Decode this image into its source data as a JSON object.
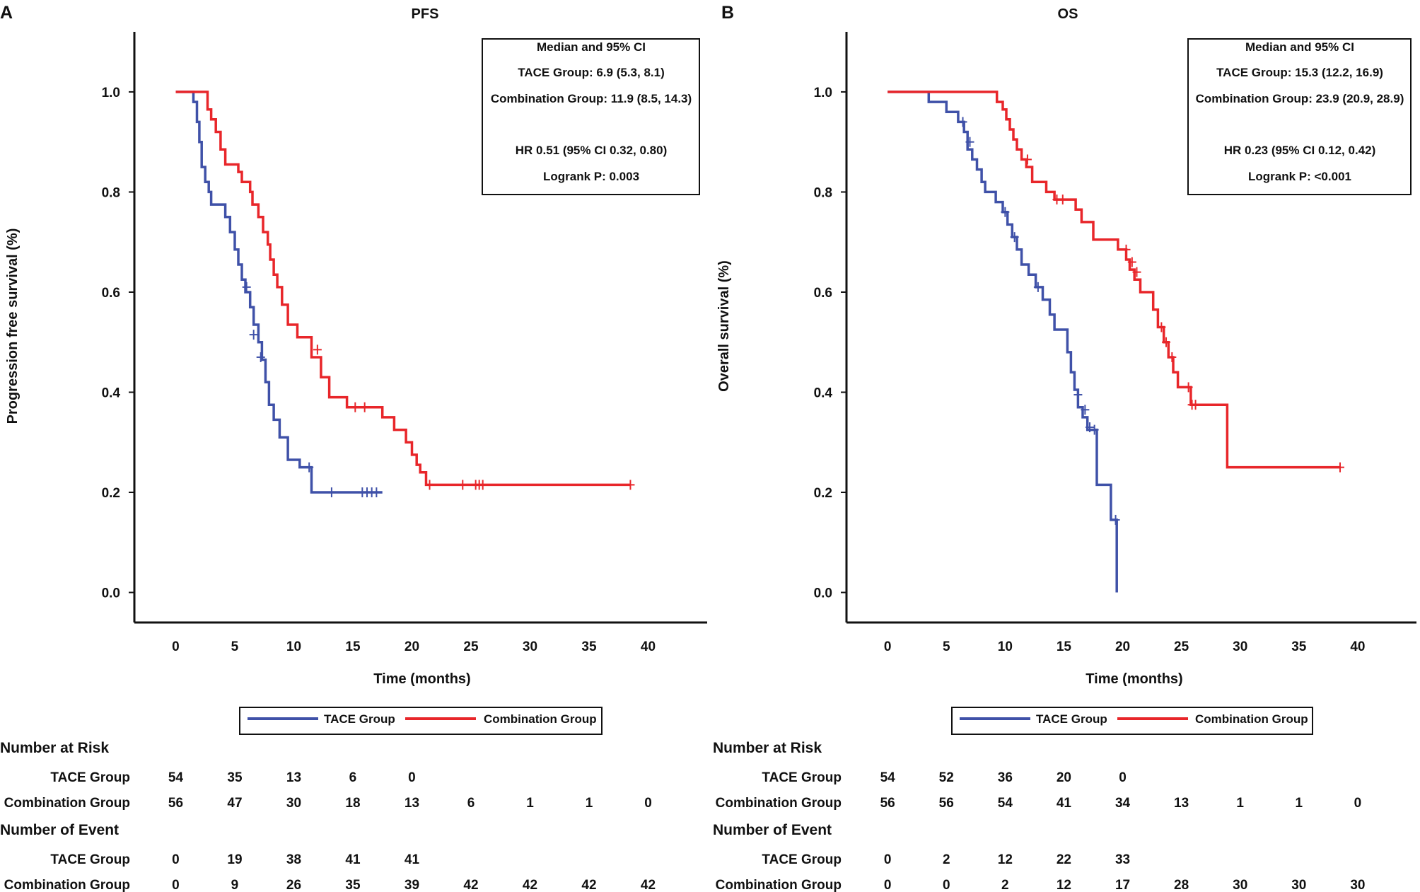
{
  "colors": {
    "tace": "#3f51a8",
    "combination": "#e8262a",
    "axis": "#111111"
  },
  "chart_data": [
    {
      "type": "line",
      "panel_label": "A",
      "title": "PFS",
      "xlabel": "Time (months)",
      "ylabel": "Progression free survival (%)",
      "xlim": [
        -3.5,
        45
      ],
      "ylim": [
        -0.06,
        1.12
      ],
      "xticks": [
        0,
        5,
        10,
        15,
        20,
        25,
        30,
        35,
        40
      ],
      "xtick_labels": [
        "0",
        "5",
        "10",
        "15",
        "20",
        "25",
        "30",
        "35",
        "40"
      ],
      "yticks": [
        0.0,
        0.2,
        0.4,
        0.6,
        0.8,
        1.0
      ],
      "ytick_labels": [
        "0.0",
        "0.2",
        "0.4",
        "0.6",
        "0.8",
        "1.0"
      ],
      "info_box": [
        "Median and 95% CI",
        "TACE Group: 6.9 (5.3, 8.1)",
        "Combination Group: 11.9 (8.5, 14.3)",
        "",
        "HR 0.51 (95% CI 0.32, 0.80)",
        "Logrank P: 0.003"
      ],
      "series": [
        {
          "name": "TACE Group",
          "x": [
            0,
            1.5,
            1.5,
            1.8,
            1.8,
            2.0,
            2.0,
            2.2,
            2.2,
            2.5,
            2.5,
            2.8,
            2.8,
            3.0,
            3.0,
            4.2,
            4.2,
            4.6,
            4.6,
            5.0,
            5.0,
            5.3,
            5.3,
            5.6,
            5.6,
            5.9,
            5.9,
            6.3,
            6.3,
            6.6,
            6.6,
            7.0,
            7.0,
            7.3,
            7.3,
            7.6,
            7.6,
            7.9,
            7.9,
            8.3,
            8.3,
            8.8,
            8.8,
            9.5,
            9.5,
            10.5,
            10.5,
            11.5,
            11.5,
            17.5
          ],
          "y": [
            1.0,
            1.0,
            0.98,
            0.98,
            0.94,
            0.94,
            0.9,
            0.9,
            0.85,
            0.85,
            0.82,
            0.82,
            0.8,
            0.8,
            0.775,
            0.775,
            0.75,
            0.75,
            0.72,
            0.72,
            0.685,
            0.685,
            0.655,
            0.655,
            0.625,
            0.625,
            0.6,
            0.6,
            0.57,
            0.57,
            0.535,
            0.535,
            0.5,
            0.5,
            0.465,
            0.465,
            0.42,
            0.42,
            0.375,
            0.375,
            0.345,
            0.345,
            0.31,
            0.31,
            0.265,
            0.265,
            0.25,
            0.25,
            0.2,
            0.2
          ],
          "censor_x": [
            6.0,
            6.6,
            7.2,
            11.3,
            13.2,
            15.8,
            16.2,
            16.6,
            17.0
          ],
          "censor_y": [
            0.61,
            0.515,
            0.47,
            0.25,
            0.2,
            0.2,
            0.2,
            0.2,
            0.2
          ]
        },
        {
          "name": "Combination Group",
          "x": [
            0,
            2.7,
            2.7,
            3.0,
            3.0,
            3.4,
            3.4,
            3.8,
            3.8,
            4.2,
            4.2,
            5.3,
            5.3,
            5.6,
            5.6,
            6.3,
            6.3,
            6.5,
            6.5,
            7.0,
            7.0,
            7.4,
            7.4,
            7.8,
            7.8,
            8.0,
            8.0,
            8.3,
            8.3,
            8.6,
            8.6,
            9.0,
            9.0,
            9.5,
            9.5,
            10.3,
            10.3,
            11.5,
            11.5,
            12.3,
            12.3,
            13.0,
            13.0,
            14.0,
            14.0,
            14.5,
            14.5,
            16.0,
            16.0,
            17.5,
            17.5,
            18.5,
            18.5,
            19.5,
            19.5,
            20.0,
            20.0,
            20.4,
            20.4,
            20.7,
            20.7,
            21.2,
            21.2,
            38.5
          ],
          "y": [
            1.0,
            1.0,
            0.965,
            0.965,
            0.945,
            0.945,
            0.92,
            0.92,
            0.885,
            0.885,
            0.855,
            0.855,
            0.84,
            0.84,
            0.82,
            0.82,
            0.8,
            0.8,
            0.775,
            0.775,
            0.75,
            0.75,
            0.72,
            0.72,
            0.695,
            0.695,
            0.665,
            0.665,
            0.635,
            0.635,
            0.61,
            0.61,
            0.575,
            0.575,
            0.535,
            0.535,
            0.51,
            0.51,
            0.47,
            0.47,
            0.43,
            0.43,
            0.39,
            0.39,
            0.39,
            0.39,
            0.37,
            0.37,
            0.37,
            0.37,
            0.35,
            0.35,
            0.325,
            0.325,
            0.3,
            0.3,
            0.275,
            0.275,
            0.255,
            0.255,
            0.24,
            0.24,
            0.215,
            0.215
          ],
          "censor_x": [
            12.0,
            15.2,
            16.0,
            21.5,
            24.3,
            25.4,
            25.7,
            26.0,
            38.5
          ],
          "censor_y": [
            0.485,
            0.37,
            0.37,
            0.215,
            0.215,
            0.215,
            0.215,
            0.215,
            0.215
          ]
        }
      ]
    },
    {
      "type": "line",
      "panel_label": "B",
      "title": "OS",
      "xlabel": "Time (months)",
      "ylabel": "Overall survival (%)",
      "xlim": [
        -3.5,
        45
      ],
      "ylim": [
        -0.06,
        1.12
      ],
      "xticks": [
        0,
        5,
        10,
        15,
        20,
        25,
        30,
        35,
        40
      ],
      "xtick_labels": [
        "0",
        "5",
        "10",
        "15",
        "20",
        "25",
        "30",
        "35",
        "40"
      ],
      "yticks": [
        0.0,
        0.2,
        0.4,
        0.6,
        0.8,
        1.0
      ],
      "ytick_labels": [
        "0.0",
        "0.2",
        "0.4",
        "0.6",
        "0.8",
        "1.0"
      ],
      "info_box": [
        "Median and 95% CI",
        "TACE Group: 15.3 (12.2, 16.9)",
        "Combination Group: 23.9 (20.9, 28.9)",
        "",
        "HR 0.23 (95% CI 0.12, 0.42)",
        "Logrank P: <0.001"
      ],
      "series": [
        {
          "name": "TACE Group",
          "x": [
            0,
            3.5,
            3.5,
            5.0,
            5.0,
            6.0,
            6.0,
            6.5,
            6.5,
            6.8,
            6.8,
            7.2,
            7.2,
            7.6,
            7.6,
            8.0,
            8.0,
            8.3,
            8.3,
            9.2,
            9.2,
            9.8,
            9.8,
            10.2,
            10.2,
            10.6,
            10.6,
            11.0,
            11.0,
            11.4,
            11.4,
            12.0,
            12.0,
            12.6,
            12.6,
            13.2,
            13.2,
            13.8,
            13.8,
            14.2,
            14.2,
            15.3,
            15.3,
            15.6,
            15.6,
            15.9,
            15.9,
            16.2,
            16.2,
            16.6,
            16.6,
            17.0,
            17.0,
            17.8,
            17.8,
            19.0,
            19.0,
            19.5,
            19.5
          ],
          "y": [
            1.0,
            1.0,
            0.98,
            0.98,
            0.96,
            0.96,
            0.94,
            0.94,
            0.92,
            0.92,
            0.885,
            0.885,
            0.865,
            0.865,
            0.845,
            0.845,
            0.82,
            0.82,
            0.8,
            0.8,
            0.78,
            0.78,
            0.76,
            0.76,
            0.735,
            0.735,
            0.71,
            0.71,
            0.685,
            0.685,
            0.655,
            0.655,
            0.635,
            0.635,
            0.61,
            0.61,
            0.585,
            0.585,
            0.555,
            0.555,
            0.525,
            0.525,
            0.48,
            0.48,
            0.44,
            0.44,
            0.405,
            0.405,
            0.37,
            0.37,
            0.35,
            0.35,
            0.325,
            0.325,
            0.215,
            0.215,
            0.145,
            0.145,
            0.0
          ],
          "censor_x": [
            6.4,
            7.0,
            10.0,
            10.8,
            12.8,
            16.2,
            16.8,
            17.2,
            17.6,
            19.4
          ],
          "censor_y": [
            0.94,
            0.9,
            0.76,
            0.71,
            0.61,
            0.395,
            0.365,
            0.33,
            0.325,
            0.145
          ],
          "end_time": 19.5,
          "end_value": 0.0
        },
        {
          "name": "Combination Group",
          "x": [
            0,
            9.3,
            9.3,
            9.8,
            9.8,
            10.1,
            10.1,
            10.4,
            10.4,
            10.7,
            10.7,
            11.0,
            11.0,
            11.4,
            11.4,
            11.8,
            11.8,
            12.3,
            12.3,
            13.5,
            13.5,
            14.2,
            14.2,
            16.0,
            16.0,
            16.5,
            16.5,
            17.5,
            17.5,
            19.6,
            19.6,
            20.3,
            20.3,
            20.6,
            20.6,
            21.0,
            21.0,
            21.5,
            21.5,
            22.6,
            22.6,
            23.0,
            23.0,
            23.5,
            23.5,
            23.9,
            23.9,
            24.3,
            24.3,
            24.7,
            24.7,
            25.8,
            25.8,
            28.9,
            28.9,
            38.5
          ],
          "y": [
            1.0,
            1.0,
            0.98,
            0.98,
            0.965,
            0.965,
            0.945,
            0.945,
            0.925,
            0.925,
            0.905,
            0.905,
            0.885,
            0.885,
            0.865,
            0.865,
            0.85,
            0.85,
            0.82,
            0.82,
            0.8,
            0.8,
            0.785,
            0.785,
            0.765,
            0.765,
            0.74,
            0.74,
            0.705,
            0.705,
            0.685,
            0.685,
            0.665,
            0.665,
            0.645,
            0.645,
            0.625,
            0.625,
            0.6,
            0.6,
            0.565,
            0.565,
            0.53,
            0.53,
            0.5,
            0.5,
            0.47,
            0.47,
            0.44,
            0.44,
            0.41,
            0.41,
            0.375,
            0.375,
            0.25,
            0.25
          ],
          "censor_x": [
            11.9,
            14.4,
            14.9,
            20.3,
            20.8,
            21.2,
            23.3,
            23.7,
            24.2,
            25.6,
            25.9,
            26.2,
            38.5
          ],
          "censor_y": [
            0.865,
            0.785,
            0.785,
            0.685,
            0.66,
            0.64,
            0.53,
            0.5,
            0.47,
            0.41,
            0.375,
            0.375,
            0.25
          ]
        }
      ]
    }
  ],
  "legend": {
    "tace": "TACE Group",
    "combination": "Combination Group"
  },
  "risk_tables": [
    {
      "risk_heading": "Number at Risk",
      "event_heading": "Number of Event",
      "row_labels": [
        "TACE Group",
        "Combination Group"
      ],
      "at_risk": [
        [
          "54",
          "35",
          "13",
          "6",
          "0"
        ],
        [
          "56",
          "47",
          "30",
          "18",
          "13",
          "6",
          "1",
          "1",
          "0"
        ]
      ],
      "events": [
        [
          "0",
          "19",
          "38",
          "41",
          "41"
        ],
        [
          "0",
          "9",
          "26",
          "35",
          "39",
          "42",
          "42",
          "42",
          "42"
        ]
      ]
    },
    {
      "risk_heading": "Number at Risk",
      "event_heading": "Number of Event",
      "row_labels": [
        "TACE Group",
        "Combination Group"
      ],
      "at_risk": [
        [
          "54",
          "52",
          "36",
          "20",
          "0"
        ],
        [
          "56",
          "56",
          "54",
          "41",
          "34",
          "13",
          "1",
          "1",
          "0"
        ]
      ],
      "events": [
        [
          "0",
          "2",
          "12",
          "22",
          "33"
        ],
        [
          "0",
          "0",
          "2",
          "12",
          "17",
          "28",
          "30",
          "30",
          "30"
        ]
      ]
    }
  ]
}
